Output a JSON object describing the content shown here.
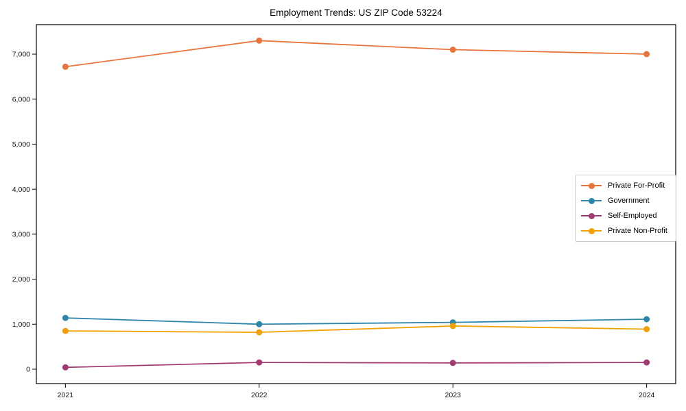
{
  "figure": {
    "background": "#ffffff"
  },
  "chart_data": {
    "type": "line",
    "title": "Employment Trends: US ZIP Code 53224",
    "xlabel": "",
    "ylabel": "",
    "x": [
      2021,
      2022,
      2023,
      2024
    ],
    "x_tick_labels": [
      "2021",
      "2022",
      "2023",
      "2024"
    ],
    "series": [
      {
        "name": "Private For-Profit",
        "color": "#E8743B",
        "values": [
          6720,
          7300,
          7100,
          7000
        ]
      },
      {
        "name": "Government",
        "color": "#2E86AB",
        "values": [
          1140,
          1000,
          1040,
          1110
        ]
      },
      {
        "name": "Self-Employed",
        "color": "#A23B72",
        "values": [
          40,
          150,
          140,
          150
        ]
      },
      {
        "name": "Private Non-Profit",
        "color": "#F2A104",
        "values": [
          850,
          820,
          960,
          890
        ]
      }
    ],
    "xlim": [
      2020.85,
      2024.15
    ],
    "ylim": [
      -320,
      7655
    ],
    "yticks": [
      0,
      1000,
      2000,
      3000,
      4000,
      5000,
      6000,
      7000
    ],
    "ytick_labels": [
      "0",
      "1,000",
      "2,000",
      "3,000",
      "4,000",
      "5,000",
      "6,000",
      "7,000"
    ],
    "grid": false,
    "legend_position": "center-right",
    "marker": "circle",
    "marker_size": 9,
    "line_width": 1.8,
    "axis_color": "#000000",
    "tick_font_size": 10.5,
    "x_tick_font_size": 10.5
  }
}
